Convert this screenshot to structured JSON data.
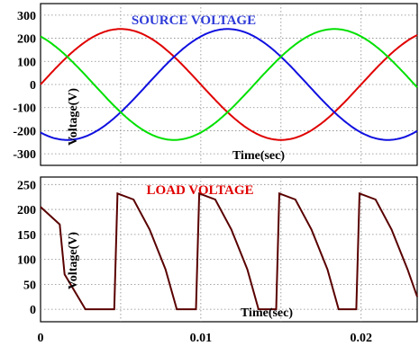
{
  "chart_data": [
    {
      "type": "line",
      "title": "SOURCE VOLTAGE",
      "title_color": "#2e3bd8",
      "xlabel": "Time(sec)",
      "ylabel": "Voltage(V)",
      "xlim": [
        0,
        0.0235
      ],
      "ylim": [
        -350,
        350
      ],
      "yticks": [
        300,
        200,
        100,
        0,
        -100,
        -200,
        -300
      ],
      "grid": true,
      "wave": {
        "amplitude": 240,
        "frequency_hz": 50
      },
      "series": [
        {
          "color": "#e00000",
          "phase_deg": 0
        },
        {
          "color": "#1010e0",
          "phase_deg": -120
        },
        {
          "color": "#00e000",
          "phase_deg": 120
        }
      ]
    },
    {
      "type": "line",
      "title": "LOAD VOLTAGE",
      "title_color": "#e00000",
      "xlabel": "Time(sec)",
      "ylabel": "Voltage(V)",
      "xlim": [
        0,
        0.0235
      ],
      "ylim": [
        -25,
        265
      ],
      "yticks": [
        250,
        200,
        150,
        100,
        50,
        0
      ],
      "xticks": [
        0,
        0.01,
        0.02
      ],
      "xticklabels": [
        "0",
        "0.01",
        "0.02"
      ],
      "grid": true,
      "series": [
        {
          "color": "#5a0000",
          "description_points": [
            [
              0,
              205
            ],
            [
              0.0012,
              170
            ],
            [
              0.0015,
              70
            ],
            [
              0.0028,
              0
            ],
            [
              0.0046,
              0
            ],
            [
              0.0046,
              0
            ],
            [
              0.0048,
              232
            ],
            [
              0.0058,
              220
            ],
            [
              0.0068,
              160
            ],
            [
              0.0078,
              80
            ],
            [
              0.0085,
              0
            ],
            [
              0.0097,
              0
            ],
            [
              0.0099,
              232
            ],
            [
              0.0109,
              220
            ],
            [
              0.0119,
              160
            ],
            [
              0.0129,
              80
            ],
            [
              0.0136,
              0
            ],
            [
              0.0147,
              0
            ],
            [
              0.0149,
              232
            ],
            [
              0.0159,
              220
            ],
            [
              0.0169,
              160
            ],
            [
              0.0179,
              80
            ],
            [
              0.0186,
              0
            ],
            [
              0.0197,
              0
            ],
            [
              0.0199,
              232
            ],
            [
              0.0209,
              220
            ],
            [
              0.0219,
              160
            ],
            [
              0.0229,
              80
            ],
            [
              0.0235,
              25
            ]
          ]
        }
      ]
    }
  ]
}
